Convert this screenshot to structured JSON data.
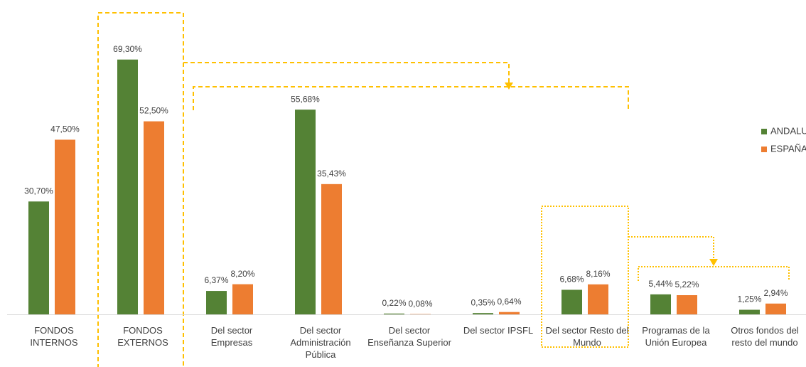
{
  "chart_data": {
    "type": "bar",
    "categories": [
      "FONDOS INTERNOS",
      "FONDOS EXTERNOS",
      "Del sector Empresas",
      "Del sector Administración Pública",
      "Del sector Enseñanza Superior",
      "Del sector IPSFL",
      "Del sector Resto del Mundo",
      "Programas de la Unión Europea",
      "Otros fondos del resto del mundo"
    ],
    "series": [
      {
        "name": "ANDALUCÍA",
        "color": "#548235",
        "values": [
          30.7,
          69.3,
          6.37,
          55.68,
          0.22,
          0.35,
          6.68,
          5.44,
          1.25
        ],
        "value_labels": [
          "30,70%",
          "69,30%",
          "6,37%",
          "55,68%",
          "0,22%",
          "0,35%",
          "6,68%",
          "5,44%",
          "1,25%"
        ]
      },
      {
        "name": "ESPAÑA",
        "color": "#ed7d31",
        "values": [
          47.5,
          52.5,
          8.2,
          35.43,
          0.08,
          0.64,
          8.16,
          5.22,
          2.94
        ],
        "value_labels": [
          "47,50%",
          "52,50%",
          "8,20%",
          "35,43%",
          "0,08%",
          "0,64%",
          "8,16%",
          "5,22%",
          "2,94%"
        ]
      }
    ],
    "legend": "right"
  }
}
